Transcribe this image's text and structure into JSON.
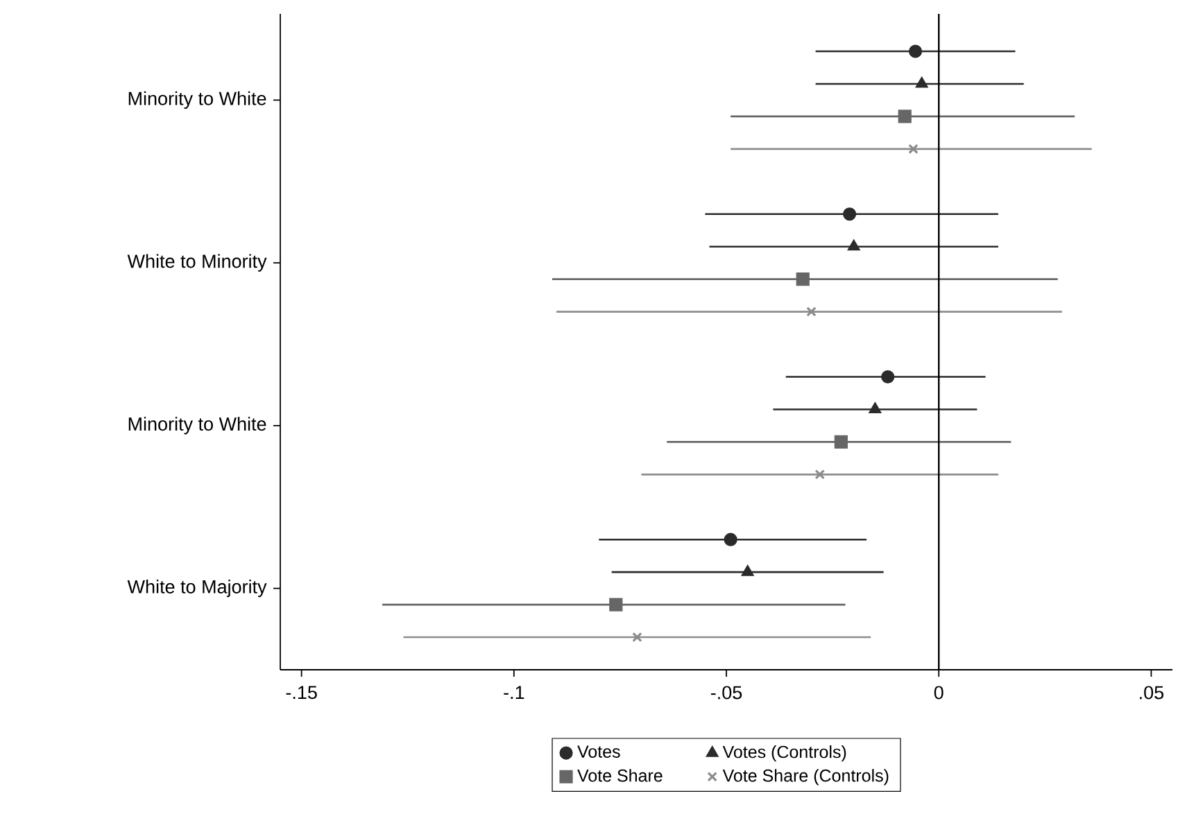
{
  "chart_data": {
    "type": "scatter",
    "orientation": "horizontal",
    "categories": [
      "Minority to White",
      "White to Minority",
      "Minority to White",
      "White to Majority"
    ],
    "series": [
      {
        "name": "Votes",
        "color": "#2b2b2b",
        "marker": "circle",
        "values": [
          -0.0055,
          -0.021,
          -0.012,
          -0.049
        ],
        "errors": [
          [
            -0.029,
            0.018
          ],
          [
            -0.055,
            0.014
          ],
          [
            -0.036,
            0.011
          ],
          [
            -0.08,
            -0.017
          ]
        ]
      },
      {
        "name": "Votes (Controls)",
        "color": "#2b2b2b",
        "marker": "triangle",
        "values": [
          -0.004,
          -0.02,
          -0.015,
          -0.045
        ],
        "errors": [
          [
            -0.029,
            0.02
          ],
          [
            -0.054,
            0.014
          ],
          [
            -0.039,
            0.009
          ],
          [
            -0.077,
            -0.013
          ]
        ]
      },
      {
        "name": "Vote Share",
        "color": "#666666",
        "marker": "square",
        "values": [
          -0.008,
          -0.032,
          -0.023,
          -0.076
        ],
        "errors": [
          [
            -0.049,
            0.032
          ],
          [
            -0.091,
            0.028
          ],
          [
            -0.064,
            0.017
          ],
          [
            -0.131,
            -0.022
          ]
        ]
      },
      {
        "name": "Vote Share (Controls)",
        "color": "#8c8c8c",
        "marker": "cross",
        "values": [
          -0.006,
          -0.03,
          -0.028,
          -0.071
        ],
        "errors": [
          [
            -0.049,
            0.036
          ],
          [
            -0.09,
            0.029
          ],
          [
            -0.07,
            0.014
          ],
          [
            -0.126,
            -0.016
          ]
        ]
      }
    ],
    "xlim": [
      -0.155,
      0.055
    ],
    "xticks": [
      {
        "value": -0.15,
        "label": "-.15"
      },
      {
        "value": -0.1,
        "label": "-.1"
      },
      {
        "value": -0.05,
        "label": "-.05"
      },
      0,
      {
        "value": 0.05,
        "label": ".05"
      }
    ],
    "ref_lines": [
      {
        "axis": "x",
        "value": 0,
        "color": "#000000"
      }
    ],
    "grid": false,
    "legend": "bottom"
  }
}
